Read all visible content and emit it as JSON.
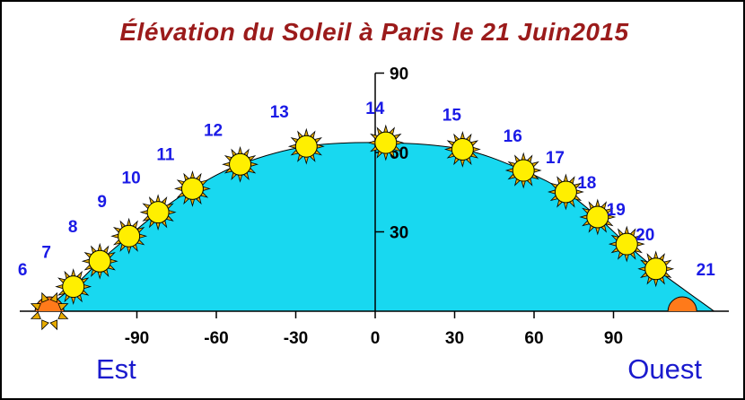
{
  "chart_data": {
    "type": "area",
    "title": "Élévation du Soleil à Paris le 21 Juin2015",
    "x_ticks": [
      "-90",
      "-60",
      "-30",
      "0",
      "30",
      "60",
      "90"
    ],
    "x_tick_values": [
      -90,
      -60,
      -30,
      0,
      30,
      60,
      90
    ],
    "y_ticks": [
      "90",
      "60",
      "30"
    ],
    "y_tick_values": [
      90,
      60,
      30
    ],
    "xlim": [
      -126,
      128
    ],
    "ylim": [
      0,
      90
    ],
    "direction_labels": {
      "east": "Est",
      "west": "Ouest"
    },
    "series": [
      {
        "hours": [
          "6",
          "7",
          "8",
          "9",
          "10",
          "11",
          "12",
          "13",
          "14",
          "15",
          "16",
          "17",
          "18",
          "19",
          "20",
          "21"
        ],
        "azimuth": [
          -123,
          -114,
          -104,
          -93,
          -82,
          -69,
          -51,
          -26,
          4,
          33,
          56,
          72,
          84,
          95,
          106,
          116
        ],
        "elevation": [
          -0.5,
          9.3,
          18.9,
          28.4,
          37.4,
          46.3,
          55.5,
          62.3,
          63.7,
          61.2,
          53.2,
          45.1,
          35.6,
          25.4,
          16,
          7
        ]
      }
    ],
    "colors": {
      "sky": "#18d8f0",
      "sun": "#ffef00",
      "sun_stroke": "#000000",
      "ray": "#e8ac00",
      "horizon_sun": "#ff7a1a",
      "hour_label": "#1a1ae6",
      "title": "#9b1b1b",
      "direction_label": "#1a1acd"
    }
  }
}
